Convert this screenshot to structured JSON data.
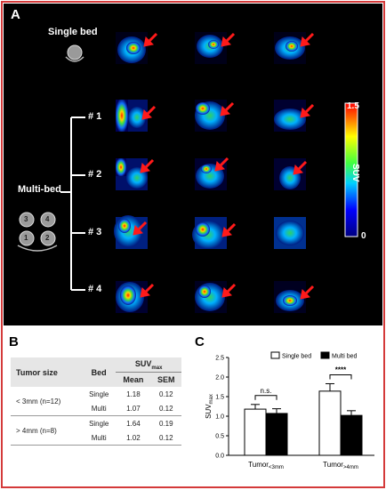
{
  "panelA": {
    "letter": "A",
    "single_label": "Single bed",
    "multi_label": "Multi-bed",
    "positions": [
      "# 1",
      "# 2",
      "# 3",
      "# 4"
    ],
    "tray_numbers": [
      "3",
      "4",
      "1",
      "2"
    ],
    "colorbar": {
      "max": "1.5",
      "min": "0",
      "label": "SUV"
    }
  },
  "panelB": {
    "letter": "B",
    "headers": {
      "tumor_size": "Tumor size",
      "bed": "Bed",
      "suv": "SUV",
      "suv_sub": "max",
      "mean": "Mean",
      "sem": "SEM"
    },
    "rows": [
      {
        "group": "< 3mm (n=12)",
        "bed": "Single",
        "mean": "1.18",
        "sem": "0.12"
      },
      {
        "group": "",
        "bed": "Multi",
        "mean": "1.07",
        "sem": "0.12"
      },
      {
        "group": "> 4mm (n=8)",
        "bed": "Single",
        "mean": "1.64",
        "sem": "0.19"
      },
      {
        "group": "",
        "bed": "Multi",
        "mean": "1.02",
        "sem": "0.12"
      }
    ]
  },
  "panelC": {
    "letter": "C",
    "legend": {
      "single": "Single bed",
      "multi": "Multi bed"
    },
    "significance": [
      "n.s.",
      "****"
    ]
  },
  "chart_data": {
    "type": "bar",
    "categories": [
      "Tumor<3mm",
      "Tumor>4mm"
    ],
    "category_parts": [
      [
        "Tumor",
        "<3mm"
      ],
      [
        "Tumor",
        ">4mm"
      ]
    ],
    "series": [
      {
        "name": "Single bed",
        "values": [
          1.18,
          1.64
        ],
        "errors": [
          0.12,
          0.19
        ],
        "color": "#ffffff"
      },
      {
        "name": "Multi bed",
        "values": [
          1.07,
          1.02
        ],
        "errors": [
          0.12,
          0.12
        ],
        "color": "#000000"
      }
    ],
    "ylabel": "SUV",
    "ylabel_sub": "max",
    "ylim": [
      0,
      2.5
    ],
    "yticks": [
      "0.0",
      "0.5",
      "1.0",
      "1.5",
      "2.0",
      "2.5"
    ],
    "legend_position": "top-right"
  },
  "colors": {
    "frame": "#d43a3a",
    "arrow": "#ff1a1a",
    "table_header": "#e6e6e6"
  }
}
